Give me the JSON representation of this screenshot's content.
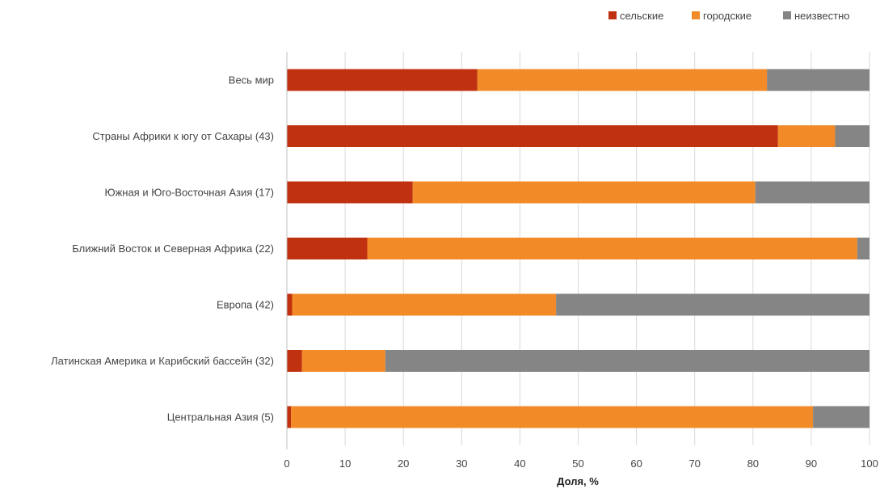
{
  "chart_data": {
    "type": "bar",
    "orientation": "horizontal",
    "stacked": true,
    "categories": [
      "Весь мир",
      "Страны Африки к югу от Сахары (43)",
      "Южная и Юго-Восточная Азия (17)",
      "Ближний Восток и Северная Африка (22)",
      "Европа (42)",
      "Латинская Америка и Карибский бассейн (32)",
      "Центральная Азия (5)"
    ],
    "series": [
      {
        "name": "сельские",
        "color": "#c0310f",
        "values": [
          32.7,
          84.3,
          21.6,
          13.8,
          0.9,
          2.6,
          0.7
        ]
      },
      {
        "name": "городские",
        "color": "#f28a28",
        "values": [
          49.7,
          9.8,
          58.8,
          84.1,
          45.3,
          14.3,
          89.6
        ]
      },
      {
        "name": "неизвестно",
        "color": "#858585",
        "values": [
          17.6,
          5.9,
          19.6,
          2.1,
          53.8,
          83.1,
          9.7
        ]
      }
    ],
    "xlabel": "Доля, %",
    "xlim": [
      0,
      100
    ],
    "xticks": [
      "0",
      "10",
      "20",
      "30",
      "40",
      "50",
      "60",
      "70",
      "80",
      "90",
      "100"
    ],
    "grid": true,
    "legend_position": "top-right"
  }
}
